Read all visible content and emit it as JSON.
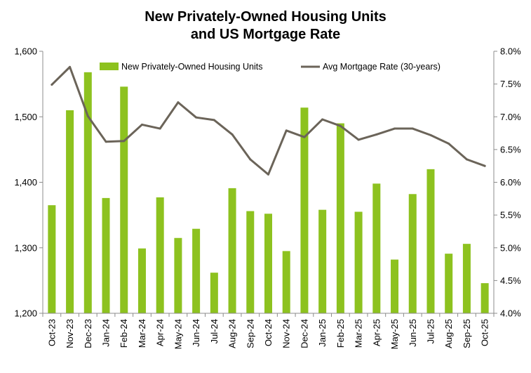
{
  "chart_data": {
    "type": "bar",
    "title_lines": [
      "New Privately-Owned Housing Units",
      "and US Mortgage Rate"
    ],
    "categories": [
      "Oct-23",
      "Nov-23",
      "Dec-23",
      "Jan-24",
      "Feb-24",
      "Mar-24",
      "Apr-24",
      "May-24",
      "Jun-24",
      "Jul-24",
      "Aug-24",
      "Sep-24",
      "Oct-24",
      "Nov-24",
      "Dec-24",
      "Jan-25",
      "Feb-25",
      "Mar-25",
      "Apr-25",
      "May-25",
      "Jun-25",
      "Jul-25",
      "Aug-25",
      "Sep-25",
      "Oct-25"
    ],
    "series": [
      {
        "name": "New Privately-Owned Housing Units",
        "type": "bar",
        "axis": "left",
        "color": "#8dc21f",
        "values": [
          1365,
          1510,
          1568,
          1376,
          1546,
          1299,
          1377,
          1315,
          1329,
          1262,
          1391,
          1356,
          1352,
          1295,
          1514,
          1358,
          1490,
          1355,
          1398,
          1282,
          1382,
          1420,
          1291,
          1306,
          1246
        ]
      },
      {
        "name": "Avg Mortgage Rate (30-years)",
        "type": "line",
        "axis": "right",
        "color": "#6b6459",
        "values": [
          7.49,
          7.76,
          7.01,
          6.62,
          6.63,
          6.88,
          6.82,
          7.22,
          6.99,
          6.95,
          6.73,
          6.35,
          6.12,
          6.79,
          6.69,
          6.96,
          6.86,
          6.65,
          6.73,
          6.82,
          6.82,
          6.72,
          6.59,
          6.35,
          6.25
        ]
      }
    ],
    "y_left": {
      "min": 1200,
      "max": 1600,
      "ticks": [
        "1,200",
        "1,300",
        "1,400",
        "1,500",
        "1,600"
      ]
    },
    "y_right": {
      "min": 4.0,
      "max": 8.0,
      "ticks": [
        "4.0%",
        "4.5%",
        "5.0%",
        "5.5%",
        "6.0%",
        "6.5%",
        "7.0%",
        "7.5%",
        "8.0%"
      ]
    },
    "grid": false,
    "legend_position": "top"
  }
}
